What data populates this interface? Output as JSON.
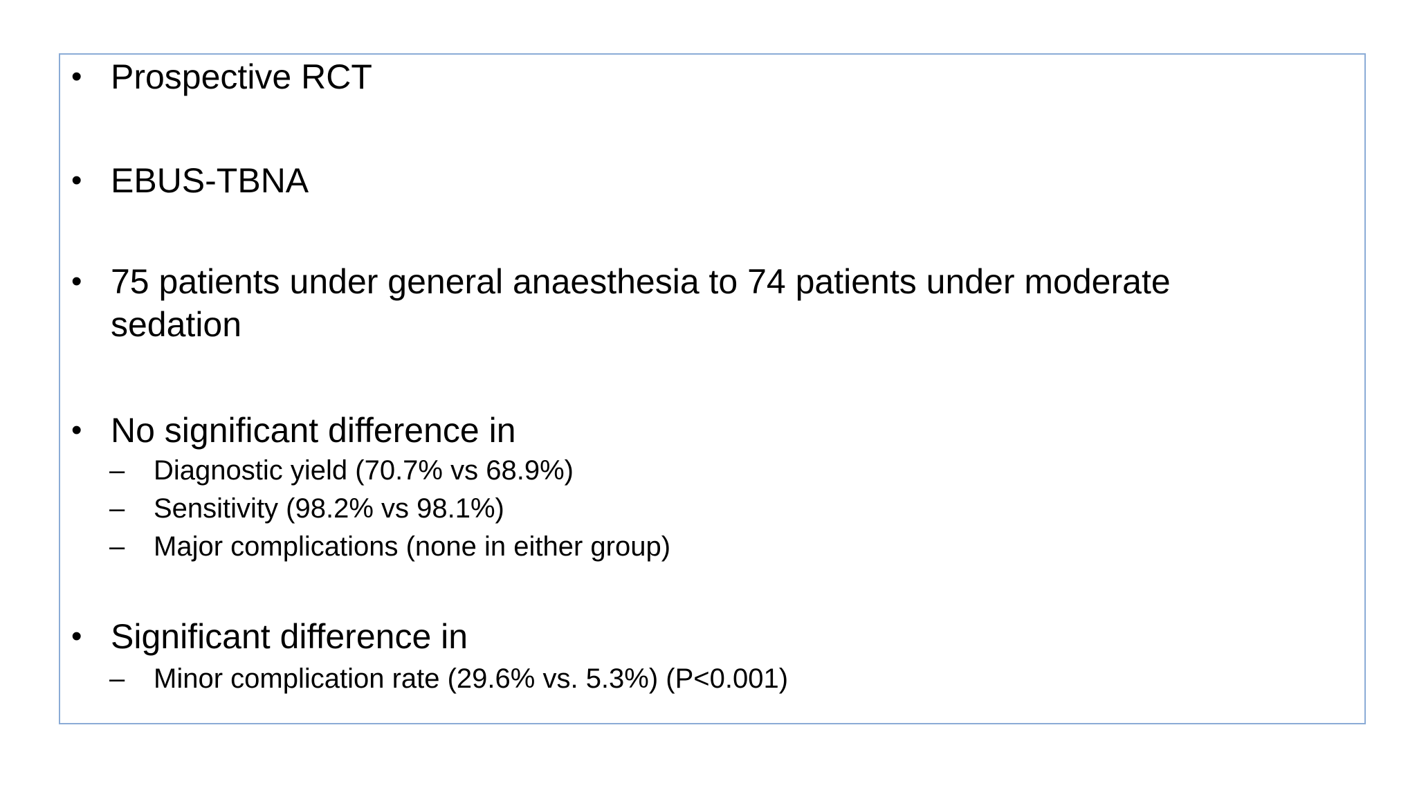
{
  "colors": {
    "background": "#ffffff",
    "box_border": "#8aabd6",
    "text": "#000000"
  },
  "markers": {
    "level1": "•",
    "level2": "–"
  },
  "slide": {
    "bullets": [
      {
        "text": "Prospective RCT",
        "children": []
      },
      {
        "text": "EBUS-TBNA",
        "children": []
      },
      {
        "text": "75 patients under general anaesthesia to 74 patients under moderate sedation",
        "children": []
      },
      {
        "text": "No significant difference in",
        "children": [
          "Diagnostic yield (70.7% vs 68.9%)",
          "Sensitivity (98.2% vs 98.1%)",
          "Major complications (none in either group)"
        ]
      },
      {
        "text": "Significant difference in",
        "children": [
          "Minor complication rate (29.6% vs. 5.3%) (P<0.001)"
        ]
      }
    ]
  }
}
